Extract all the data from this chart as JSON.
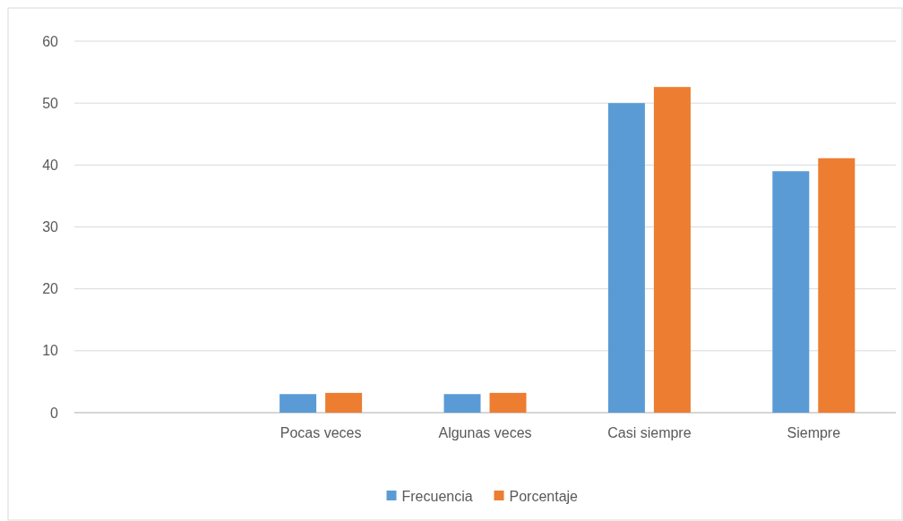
{
  "chart_data": {
    "type": "bar",
    "categories": [
      null,
      "Pocas veces",
      "Algunas veces",
      "Casi siempre",
      "Siempre"
    ],
    "series": [
      {
        "name": "Frecuencia",
        "color": "#5b9bd5",
        "values": [
          null,
          3,
          3,
          50,
          39
        ]
      },
      {
        "name": "Porcentaje",
        "color": "#ed7d31",
        "values": [
          null,
          3.2,
          3.2,
          52.6,
          41.1
        ]
      }
    ],
    "ylim": [
      0,
      60
    ],
    "yticks": [
      0,
      10,
      20,
      30,
      40,
      50,
      60
    ],
    "grid": "y",
    "legend": "bottom"
  }
}
